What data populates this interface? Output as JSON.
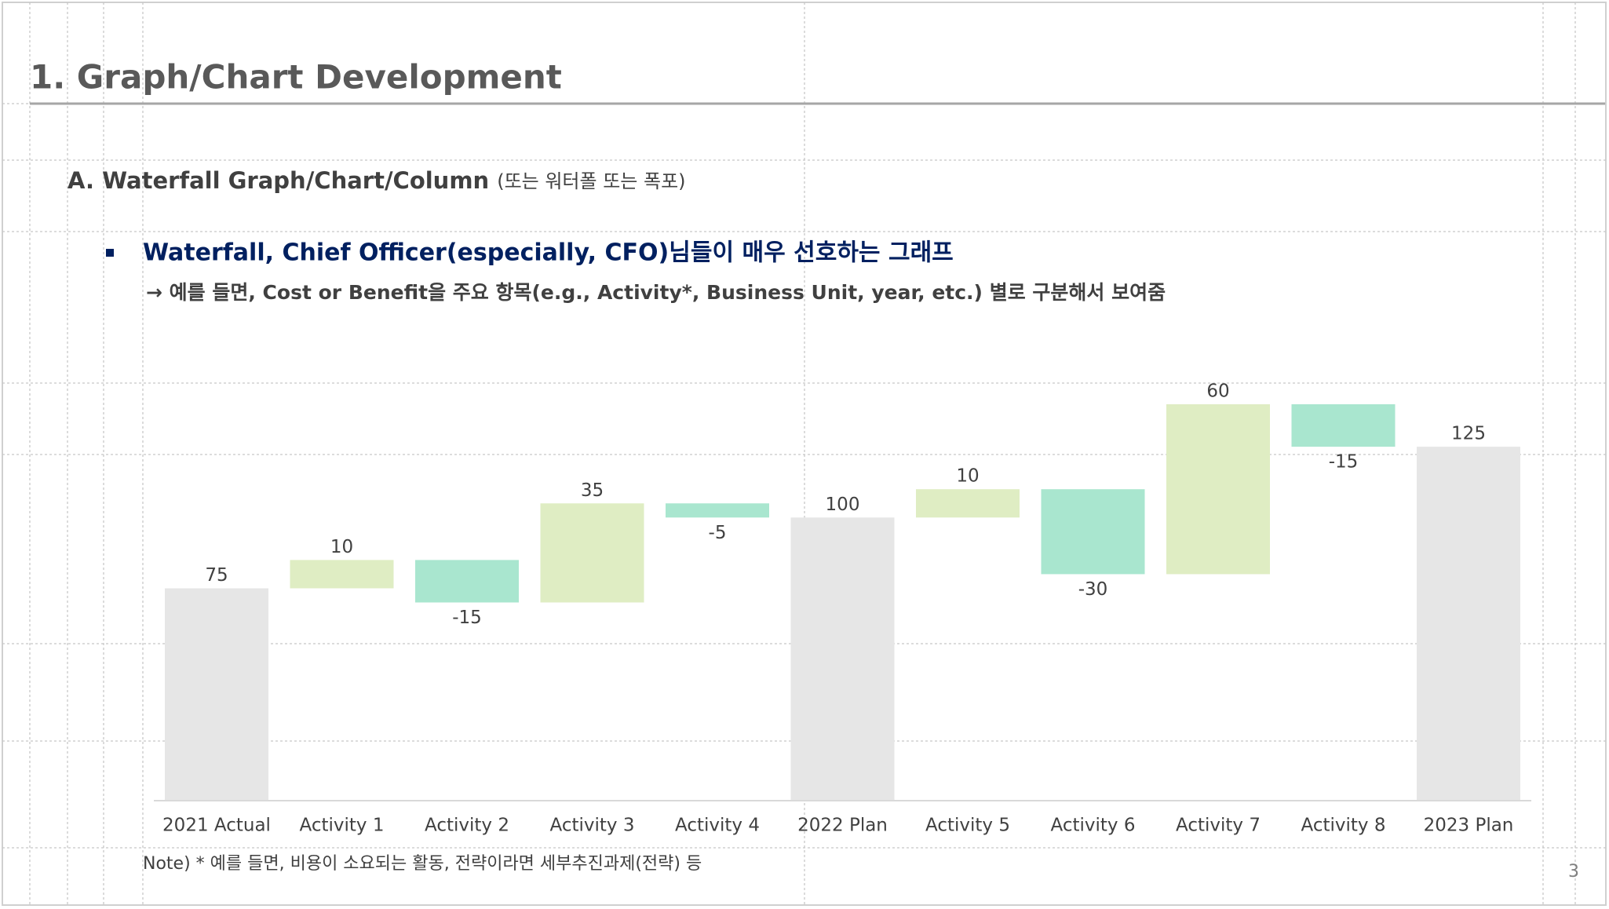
{
  "header": {
    "title": "1. Graph/Chart Development",
    "section": "A. Waterfall Graph/Chart/Column",
    "section_note": "(또는 워터폴 또는 폭포)",
    "bullet": "Waterfall, Chief Officer(especially, CFO)님들이 매우 선호하는 그래프",
    "detail": "→ 예를 들면, Cost or Benefit을 주요 항목(e.g., Activity*, Business Unit, year, etc.) 별로 구분해서 보여줌"
  },
  "chart_data": {
    "type": "waterfall",
    "categories": [
      "2021 Actual",
      "Activity 1",
      "Activity 2",
      "Activity 3",
      "Activity 4",
      "2022 Plan",
      "Activity 5",
      "Activity 6",
      "Activity 7",
      "Activity 8",
      "2023 Plan"
    ],
    "values": [
      75,
      10,
      -15,
      35,
      -5,
      100,
      10,
      -30,
      60,
      -15,
      125
    ],
    "totals": [
      0,
      5,
      10
    ],
    "total_color": "#e6e6e6",
    "increase_color": "#dfedc3",
    "decrease_color": "#a9e6cf",
    "ylim": [
      0,
      140
    ]
  },
  "footer": {
    "note": "Note) * 예를 들면, 비용이 소요되는 활동, 전략이라면 세부추진과제(전략) 등",
    "page": "3"
  }
}
